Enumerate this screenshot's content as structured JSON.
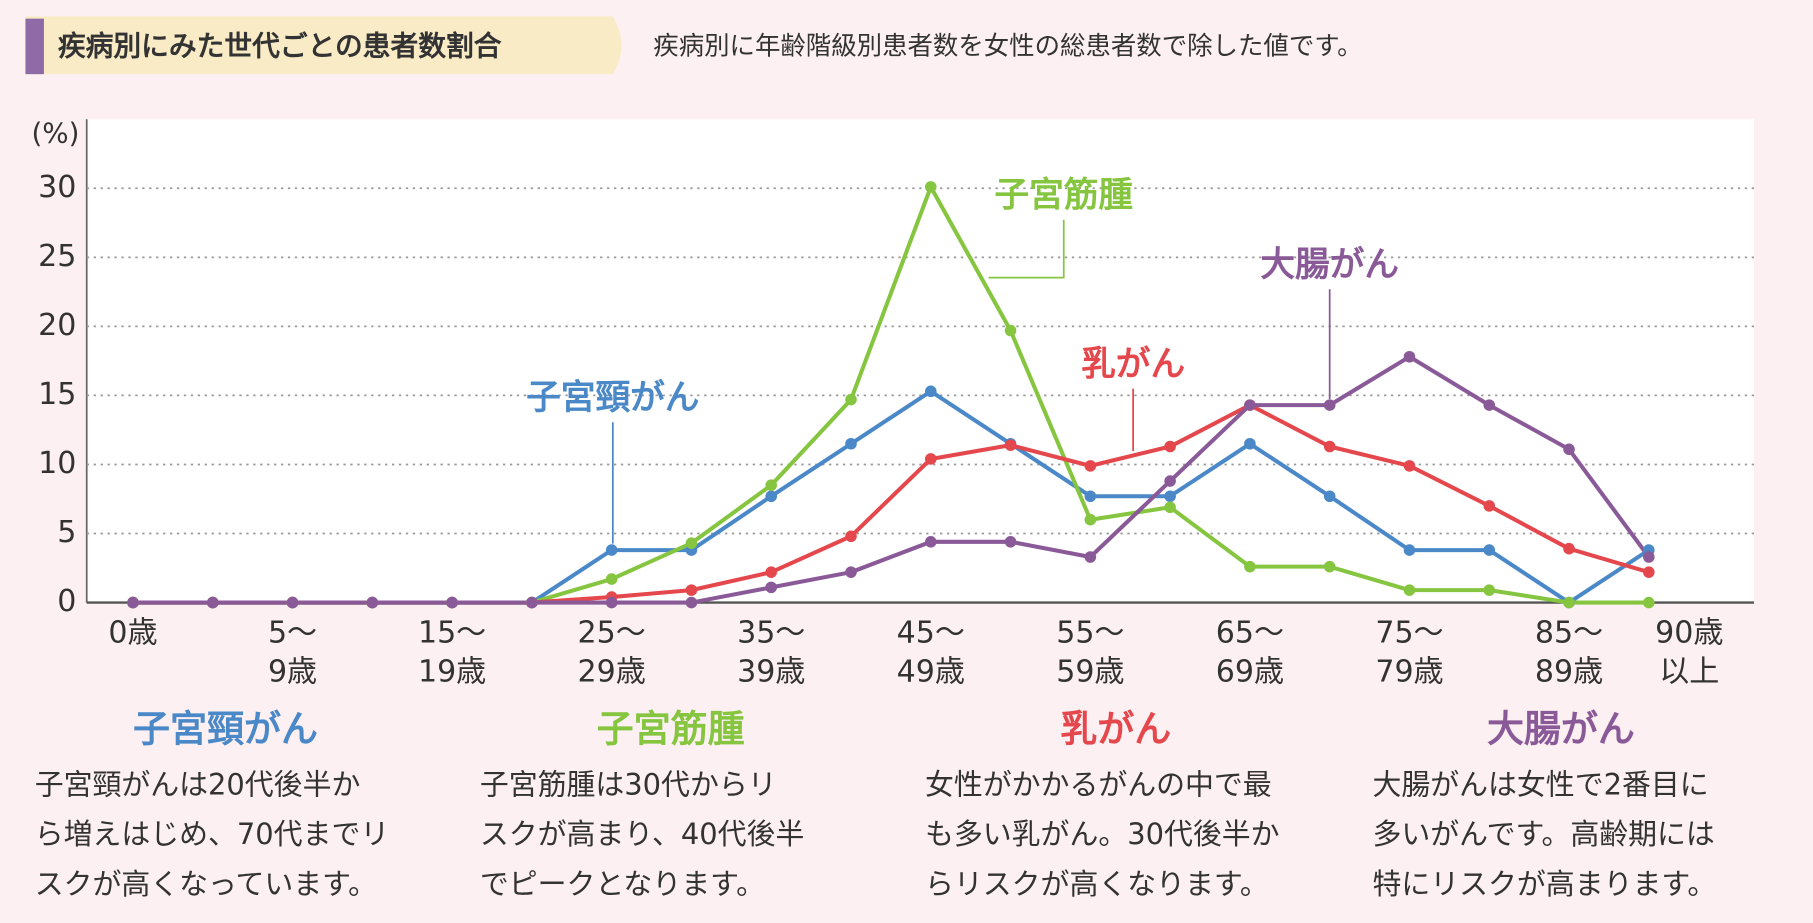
{
  "chart_data": {
    "type": "line",
    "title": "疾病別にみた世代ごとの患者数割合",
    "subtitle": "疾病別に年齢階級別患者数を女性の総患者数で除した値です。",
    "y_label": "(%)",
    "categories": [
      [
        "0歳"
      ],
      null,
      [
        "5〜",
        "9歳"
      ],
      null,
      [
        "15〜",
        "19歳"
      ],
      null,
      [
        "25〜",
        "29歳"
      ],
      null,
      [
        "35〜",
        "39歳"
      ],
      null,
      [
        "45〜",
        "49歳"
      ],
      null,
      [
        "55〜",
        "59歳"
      ],
      null,
      [
        "65〜",
        "69歳"
      ],
      null,
      [
        "75〜",
        "79歳"
      ],
      null,
      [
        "85〜",
        "89歳"
      ],
      [
        "90歳",
        "以上"
      ]
    ],
    "series": [
      {
        "name": "子宮頸がん",
        "color": "#4a88c8",
        "values": [
          0,
          0,
          0,
          0,
          0,
          0,
          3.8,
          3.8,
          7.7,
          11.5,
          15.3,
          11.5,
          7.7,
          7.7,
          11.5,
          7.7,
          3.8,
          3.8,
          0,
          3.8
        ]
      },
      {
        "name": "子宮筋腫",
        "color": "#86c540",
        "values": [
          0,
          0,
          0,
          0,
          0,
          0,
          1.7,
          4.3,
          8.5,
          14.7,
          30.1,
          19.7,
          6.0,
          6.9,
          2.6,
          2.6,
          0.9,
          0.9,
          0,
          0
        ]
      },
      {
        "name": "乳がん",
        "color": "#e4484d",
        "values": [
          0,
          0,
          0,
          0,
          0,
          0,
          0.4,
          0.9,
          2.2,
          4.8,
          10.4,
          11.4,
          9.9,
          11.3,
          14.3,
          11.3,
          9.9,
          7.0,
          3.9,
          2.2
        ]
      },
      {
        "name": "大腸がん",
        "color": "#8a5a98",
        "values": [
          0,
          0,
          0,
          0,
          0,
          0,
          0,
          0,
          1.1,
          2.2,
          4.4,
          4.4,
          3.3,
          8.8,
          14.3,
          14.3,
          17.8,
          14.3,
          11.1,
          3.3
        ]
      }
    ],
    "ylim": [
      0,
      35
    ],
    "yticks": [
      0,
      5,
      10,
      15,
      20,
      25,
      30
    ],
    "grid": true
  },
  "descriptions": [
    {
      "title": "子宮頸がん",
      "lines": [
        "子宮頸がんは20代後半か",
        "ら増えはじめ、70代までリ",
        "スクが高くなっています。"
      ]
    },
    {
      "title": "子宮筋腫",
      "lines": [
        "子宮筋腫は30代からリ",
        "スクが高まり、40代後半",
        "でピークとなります。"
      ]
    },
    {
      "title": "乳がん",
      "lines": [
        "女性がかかるがんの中で最",
        "も多い乳がん。30代後半か",
        "らリスクが高くなります。"
      ]
    },
    {
      "title": "大腸がん",
      "lines": [
        "大腸がんは女性で2番目に",
        "多いがんです。高齢期には",
        "特にリスクが高まります。"
      ]
    }
  ]
}
